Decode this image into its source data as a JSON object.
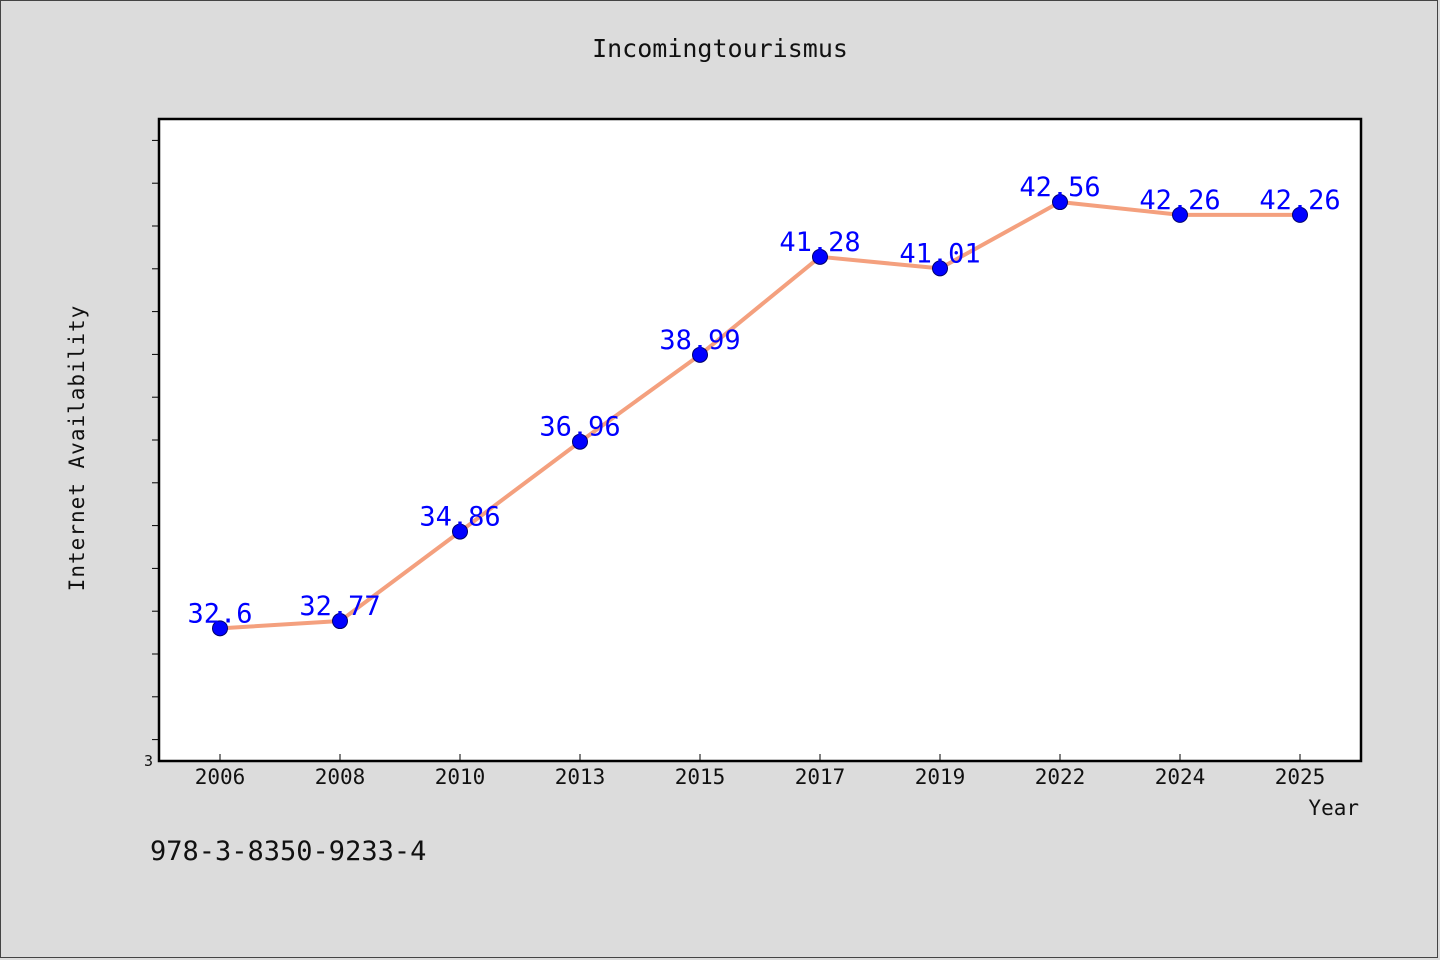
{
  "chart_data": {
    "type": "line",
    "title": "Incomingtourismus",
    "xlabel": "Year",
    "ylabel": "Internet Availability",
    "categories": [
      "2006",
      "2008",
      "2010",
      "2013",
      "2015",
      "2017",
      "2019",
      "2022",
      "2024",
      "2025"
    ],
    "series": [
      {
        "values": [
          32.6,
          32.77,
          34.86,
          36.96,
          38.99,
          41.28,
          41.01,
          42.56,
          42.26,
          42.26
        ],
        "labels": [
          "32.6",
          "32.77",
          "34.86",
          "36.96",
          "38.99",
          "41.28",
          "41.01",
          "42.56",
          "42.26",
          "42.26"
        ]
      }
    ],
    "ylim": [
      29.5,
      44.5
    ],
    "yticks_labeled": [
      {
        "value": 29.5,
        "label": "3"
      }
    ],
    "grid": false,
    "colors": {
      "line": "#f4a07e",
      "marker": "#0000ff",
      "label": "#0000ff",
      "plot_bg": "#ffffff",
      "page_bg": "#dcdcdc"
    }
  },
  "footnote": "978-3-8350-9233-4"
}
